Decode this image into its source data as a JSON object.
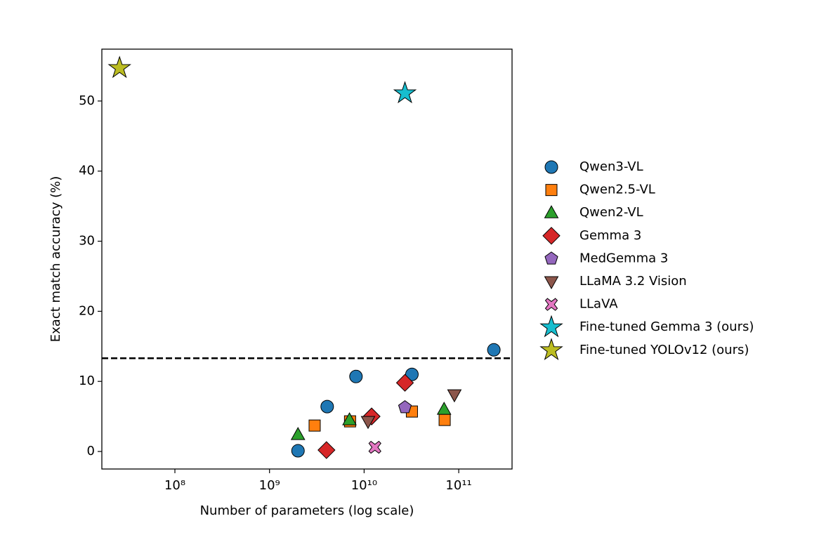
{
  "chart_data": {
    "type": "scatter",
    "x_label": "Number of parameters (log scale)",
    "y_label": "Exact match accuracy (%)",
    "xscale": "log",
    "xlim": [
      16900000,
      366000000000
    ],
    "ylim": [
      -2.5,
      57.4
    ],
    "xticks": [
      {
        "value": 100000000,
        "label": "10⁸"
      },
      {
        "value": 1000000000,
        "label": "10⁹"
      },
      {
        "value": 10000000000,
        "label": "10¹⁰"
      },
      {
        "value": 100000000000,
        "label": "10¹¹"
      }
    ],
    "yticks": [
      0,
      10,
      20,
      30,
      40,
      50
    ],
    "hline": 13.3,
    "legend": "outside right",
    "series": [
      {
        "name": "Qwen3-VL",
        "color": "#1f77b4",
        "marker": "circle",
        "x": [
          2000000000,
          4070000000,
          8200000000,
          32000000000,
          235000000000
        ],
        "values": [
          0.1,
          6.4,
          10.7,
          11.0,
          14.5
        ]
      },
      {
        "name": "Qwen2.5-VL",
        "color": "#ff7f0e",
        "marker": "square",
        "x": [
          3000000000,
          7100000000,
          32000000000,
          71000000000
        ],
        "values": [
          3.7,
          4.3,
          5.7,
          4.5
        ]
      },
      {
        "name": "Qwen2-VL",
        "color": "#2ca02c",
        "marker": "triangle",
        "x": [
          2000000000,
          7000000000,
          70000000000
        ],
        "values": [
          2.4,
          4.5,
          6.0
        ]
      },
      {
        "name": "Gemma 3",
        "color": "#d62728",
        "marker": "diamond",
        "x": [
          4000000000,
          12000000000,
          27000000000
        ],
        "values": [
          0.2,
          5.0,
          9.8
        ]
      },
      {
        "name": "MedGemma 3",
        "color": "#9467bd",
        "marker": "pentagon",
        "x": [
          27000000000
        ],
        "values": [
          6.3
        ]
      },
      {
        "name": "LLaMA 3.2 Vision",
        "color": "#8c564b",
        "marker": "triangle-down",
        "x": [
          11000000000,
          90000000000
        ],
        "values": [
          4.3,
          8.1
        ]
      },
      {
        "name": "LLaVA",
        "color": "#e377c2",
        "marker": "x",
        "x": [
          13000000000
        ],
        "values": [
          0.6
        ]
      },
      {
        "name": "Fine-tuned Gemma 3 (ours)",
        "color": "#17becf",
        "marker": "star",
        "x": [
          27000000000
        ],
        "values": [
          51.1
        ]
      },
      {
        "name": "Fine-tuned YOLOv12 (ours)",
        "color": "#bcbd22",
        "marker": "star",
        "x": [
          26000000
        ],
        "values": [
          54.7
        ]
      }
    ]
  }
}
